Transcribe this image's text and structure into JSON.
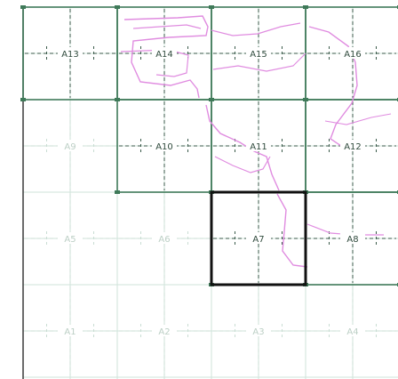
{
  "map": {
    "tiles": [
      {
        "id": "A13",
        "label": "A13",
        "col": 0,
        "row": 0,
        "state": "loaded"
      },
      {
        "id": "A14",
        "label": "A14",
        "col": 1,
        "row": 0,
        "state": "loaded"
      },
      {
        "id": "A15",
        "label": "A15",
        "col": 2,
        "row": 0,
        "state": "loaded"
      },
      {
        "id": "A16",
        "label": "A16",
        "col": 3,
        "row": 0,
        "state": "loaded"
      },
      {
        "id": "A9",
        "label": "A9",
        "col": 0,
        "row": 1,
        "state": "faded"
      },
      {
        "id": "A10",
        "label": "A10",
        "col": 1,
        "row": 1,
        "state": "loaded"
      },
      {
        "id": "A11",
        "label": "A11",
        "col": 2,
        "row": 1,
        "state": "loaded"
      },
      {
        "id": "A12",
        "label": "A12",
        "col": 3,
        "row": 1,
        "state": "loaded"
      },
      {
        "id": "A5",
        "label": "A5",
        "col": 0,
        "row": 2,
        "state": "faded"
      },
      {
        "id": "A6",
        "label": "A6",
        "col": 1,
        "row": 2,
        "state": "faded"
      },
      {
        "id": "A7",
        "label": "A7",
        "col": 2,
        "row": 2,
        "state": "selected"
      },
      {
        "id": "A8",
        "label": "A8",
        "col": 3,
        "row": 2,
        "state": "loaded"
      },
      {
        "id": "A1",
        "label": "A1",
        "col": 0,
        "row": 3,
        "state": "faded"
      },
      {
        "id": "A2",
        "label": "A2",
        "col": 1,
        "row": 3,
        "state": "faded"
      },
      {
        "id": "A3",
        "label": "A3",
        "col": 2,
        "row": 3,
        "state": "faded"
      },
      {
        "id": "A4",
        "label": "A4",
        "col": 3,
        "row": 3,
        "state": "faded"
      }
    ]
  },
  "colors": {
    "background": "#ffffff",
    "loaded_border": "#3f7a59",
    "selected_border": "#111111",
    "faded_line": "#cfe3da",
    "dash": "#3a5a4a",
    "faded_dash": "#c9ddd3",
    "label": "#2f4a3c",
    "faded_label": "#bccfc5",
    "contour": "#e08ce0"
  }
}
